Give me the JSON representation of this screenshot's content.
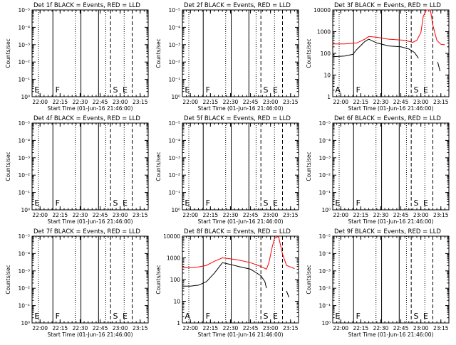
{
  "figure": {
    "colors": {
      "events": "#000000",
      "lld": "#ff0000",
      "axis": "#000000",
      "background": "#ffffff"
    }
  },
  "chart_data": [
    {
      "type": "line",
      "title": "Det 1f BLACK = Events, RED = LLD",
      "xlabel": "Start Time (01-Jun-16 21:46:00)",
      "ylabel": "Counts/sec",
      "xlim": [
        21.9,
        23.35
      ],
      "xticks": [
        "22:00",
        "22:15",
        "22:30",
        "22:45",
        "23:00",
        "23:15"
      ],
      "log_y": true,
      "ylim": [
        1,
        10000
      ],
      "yticks": [
        "10⁰",
        "10⁻¹",
        "10⁻²",
        "10⁻³",
        "10⁻⁴",
        "10⁻⁵"
      ],
      "markers": [
        "E",
        "F",
        "S",
        "E"
      ],
      "series": []
    },
    {
      "type": "line",
      "title": "Det 2f BLACK = Events, RED = LLD",
      "xlabel": "Start Time (01-Jun-16 21:46:00)",
      "ylabel": "Counts/sec",
      "xlim": [
        21.9,
        23.35
      ],
      "xticks": [
        "22:00",
        "22:15",
        "22:30",
        "22:45",
        "23:00",
        "23:15"
      ],
      "log_y": true,
      "ylim": [
        1,
        10000
      ],
      "yticks": [
        "10⁰",
        "10⁻¹",
        "10⁻²",
        "10⁻³",
        "10⁻⁴",
        "10⁻⁵"
      ],
      "markers": [
        "E",
        "F",
        "S",
        "E"
      ],
      "series": []
    },
    {
      "type": "line",
      "title": "Det 3f BLACK = Events, RED = LLD",
      "xlabel": "Start Time (01-Jun-16 21:46:00)",
      "ylabel": "Counts/sec",
      "xlim": [
        21.9,
        23.35
      ],
      "xticks": [
        "22:00",
        "22:15",
        "22:30",
        "22:45",
        "23:00",
        "23:15"
      ],
      "log_y": true,
      "ylim": [
        1,
        10000
      ],
      "yticks": [
        "1",
        "10",
        "100",
        "1000",
        "10000"
      ],
      "markers": [
        "A",
        "F",
        "S",
        "E"
      ],
      "series": [
        {
          "role": "lld",
          "x": [
            21.9,
            22.05,
            22.2,
            22.3,
            22.35,
            22.45,
            22.6,
            22.8,
            22.9,
            22.95,
            23.0,
            23.03,
            23.07,
            23.12,
            23.15,
            23.2,
            23.25,
            23.3
          ],
          "y": [
            270,
            270,
            300,
            450,
            600,
            550,
            450,
            400,
            320,
            400,
            900,
            5000,
            10000,
            10000,
            2000,
            400,
            260,
            250
          ]
        },
        {
          "role": "events",
          "x": [
            21.9,
            22.05,
            22.15,
            22.2,
            22.3,
            22.35,
            22.45,
            22.6,
            22.75,
            22.85,
            22.92,
            22.97
          ],
          "y": [
            70,
            75,
            90,
            150,
            350,
            450,
            300,
            220,
            200,
            160,
            110,
            60
          ]
        },
        {
          "role": "events",
          "x": [
            23.21,
            23.24
          ],
          "y": [
            40,
            15
          ]
        }
      ]
    },
    {
      "type": "line",
      "title": "Det 4f BLACK = Events, RED = LLD",
      "xlabel": "Start Time (01-Jun-16 21:46:00)",
      "ylabel": "Counts/sec",
      "xlim": [
        21.9,
        23.35
      ],
      "xticks": [
        "22:00",
        "22:15",
        "22:30",
        "22:45",
        "23:00",
        "23:15"
      ],
      "log_y": true,
      "ylim": [
        1,
        10000
      ],
      "yticks": [
        "10⁰",
        "10⁻¹",
        "10⁻²",
        "10⁻³",
        "10⁻⁴",
        "10⁻⁵"
      ],
      "markers": [
        "E",
        "F",
        "S",
        "E"
      ],
      "series": []
    },
    {
      "type": "line",
      "title": "Det 5f BLACK = Events, RED = LLD",
      "xlabel": "Start Time (01-Jun-16 21:46:00)",
      "ylabel": "Counts/sec",
      "xlim": [
        21.9,
        23.35
      ],
      "xticks": [
        "22:00",
        "22:15",
        "22:30",
        "22:45",
        "23:00",
        "23:15"
      ],
      "log_y": true,
      "ylim": [
        1,
        10000
      ],
      "yticks": [
        "10⁰",
        "10⁻¹",
        "10⁻²",
        "10⁻³",
        "10⁻⁴",
        "10⁻⁵"
      ],
      "markers": [
        "E",
        "F",
        "S",
        "E"
      ],
      "series": []
    },
    {
      "type": "line",
      "title": "Det 6f BLACK = Events, RED = LLD",
      "xlabel": "Start Time (01-Jun-16 21:46:00)",
      "ylabel": "Counts/sec",
      "xlim": [
        21.9,
        23.35
      ],
      "xticks": [
        "22:00",
        "22:15",
        "22:30",
        "22:45",
        "23:00",
        "23:15"
      ],
      "log_y": true,
      "ylim": [
        1,
        10000
      ],
      "yticks": [
        "10⁰",
        "10⁻¹",
        "10⁻²",
        "10⁻³",
        "10⁻⁴",
        "10⁻⁵"
      ],
      "markers": [
        "E",
        "F",
        "S",
        "E"
      ],
      "series": []
    },
    {
      "type": "line",
      "title": "Det 7f BLACK = Events, RED = LLD",
      "xlabel": "Start Time (01-Jun-16 21:46:00)",
      "ylabel": "Counts/sec",
      "xlim": [
        21.9,
        23.35
      ],
      "xticks": [
        "22:00",
        "22:15",
        "22:30",
        "22:45",
        "23:00",
        "23:15"
      ],
      "log_y": true,
      "ylim": [
        1,
        10000
      ],
      "yticks": [
        "10⁰",
        "10⁻¹",
        "10⁻²",
        "10⁻³",
        "10⁻⁴",
        "10⁻⁵"
      ],
      "markers": [
        "E",
        "F",
        "S",
        "E"
      ],
      "series": []
    },
    {
      "type": "line",
      "title": "Det 8f BLACK = Events, RED = LLD",
      "xlabel": "Start Time (01-Jun-16 21:46:00)",
      "ylabel": "Counts/sec",
      "xlim": [
        21.9,
        23.35
      ],
      "xticks": [
        "22:00",
        "22:15",
        "22:30",
        "22:45",
        "23:00",
        "23:15"
      ],
      "log_y": true,
      "ylim": [
        1,
        10000
      ],
      "yticks": [
        "1",
        "10",
        "100",
        "1000",
        "10000"
      ],
      "markers": [
        "A",
        "F",
        "S",
        "E"
      ],
      "series": [
        {
          "role": "lld",
          "x": [
            21.9,
            22.0,
            22.1,
            22.2,
            22.3,
            22.4,
            22.5,
            22.6,
            22.75,
            22.88,
            22.95,
            22.98,
            23.02,
            23.05,
            23.1,
            23.15,
            23.2,
            23.25,
            23.3
          ],
          "y": [
            350,
            350,
            380,
            450,
            700,
            1000,
            900,
            800,
            600,
            400,
            300,
            600,
            3000,
            8000,
            10000,
            1500,
            450,
            380,
            320
          ]
        },
        {
          "role": "events",
          "x": [
            21.9,
            22.0,
            22.1,
            22.2,
            22.3,
            22.4,
            22.5,
            22.6,
            22.75,
            22.88,
            22.93,
            22.95
          ],
          "y": [
            50,
            50,
            55,
            80,
            200,
            600,
            500,
            400,
            300,
            150,
            80,
            40
          ]
        },
        {
          "role": "events",
          "x": [
            23.2,
            23.23
          ],
          "y": [
            30,
            15
          ]
        }
      ]
    },
    {
      "type": "line",
      "title": "Det 9f BLACK = Events, RED = LLD",
      "xlabel": "Start Time (01-Jun-16 21:46:00)",
      "ylabel": "Counts/sec",
      "xlim": [
        21.9,
        23.35
      ],
      "xticks": [
        "22:00",
        "22:15",
        "22:30",
        "22:45",
        "23:00",
        "23:15"
      ],
      "log_y": true,
      "ylim": [
        1,
        10000
      ],
      "yticks": [
        "10⁰",
        "10⁻¹",
        "10⁻²",
        "10⁻³",
        "10⁻⁴",
        "10⁻⁵"
      ],
      "markers": [
        "E",
        "F",
        "S",
        "E"
      ],
      "series": []
    }
  ]
}
